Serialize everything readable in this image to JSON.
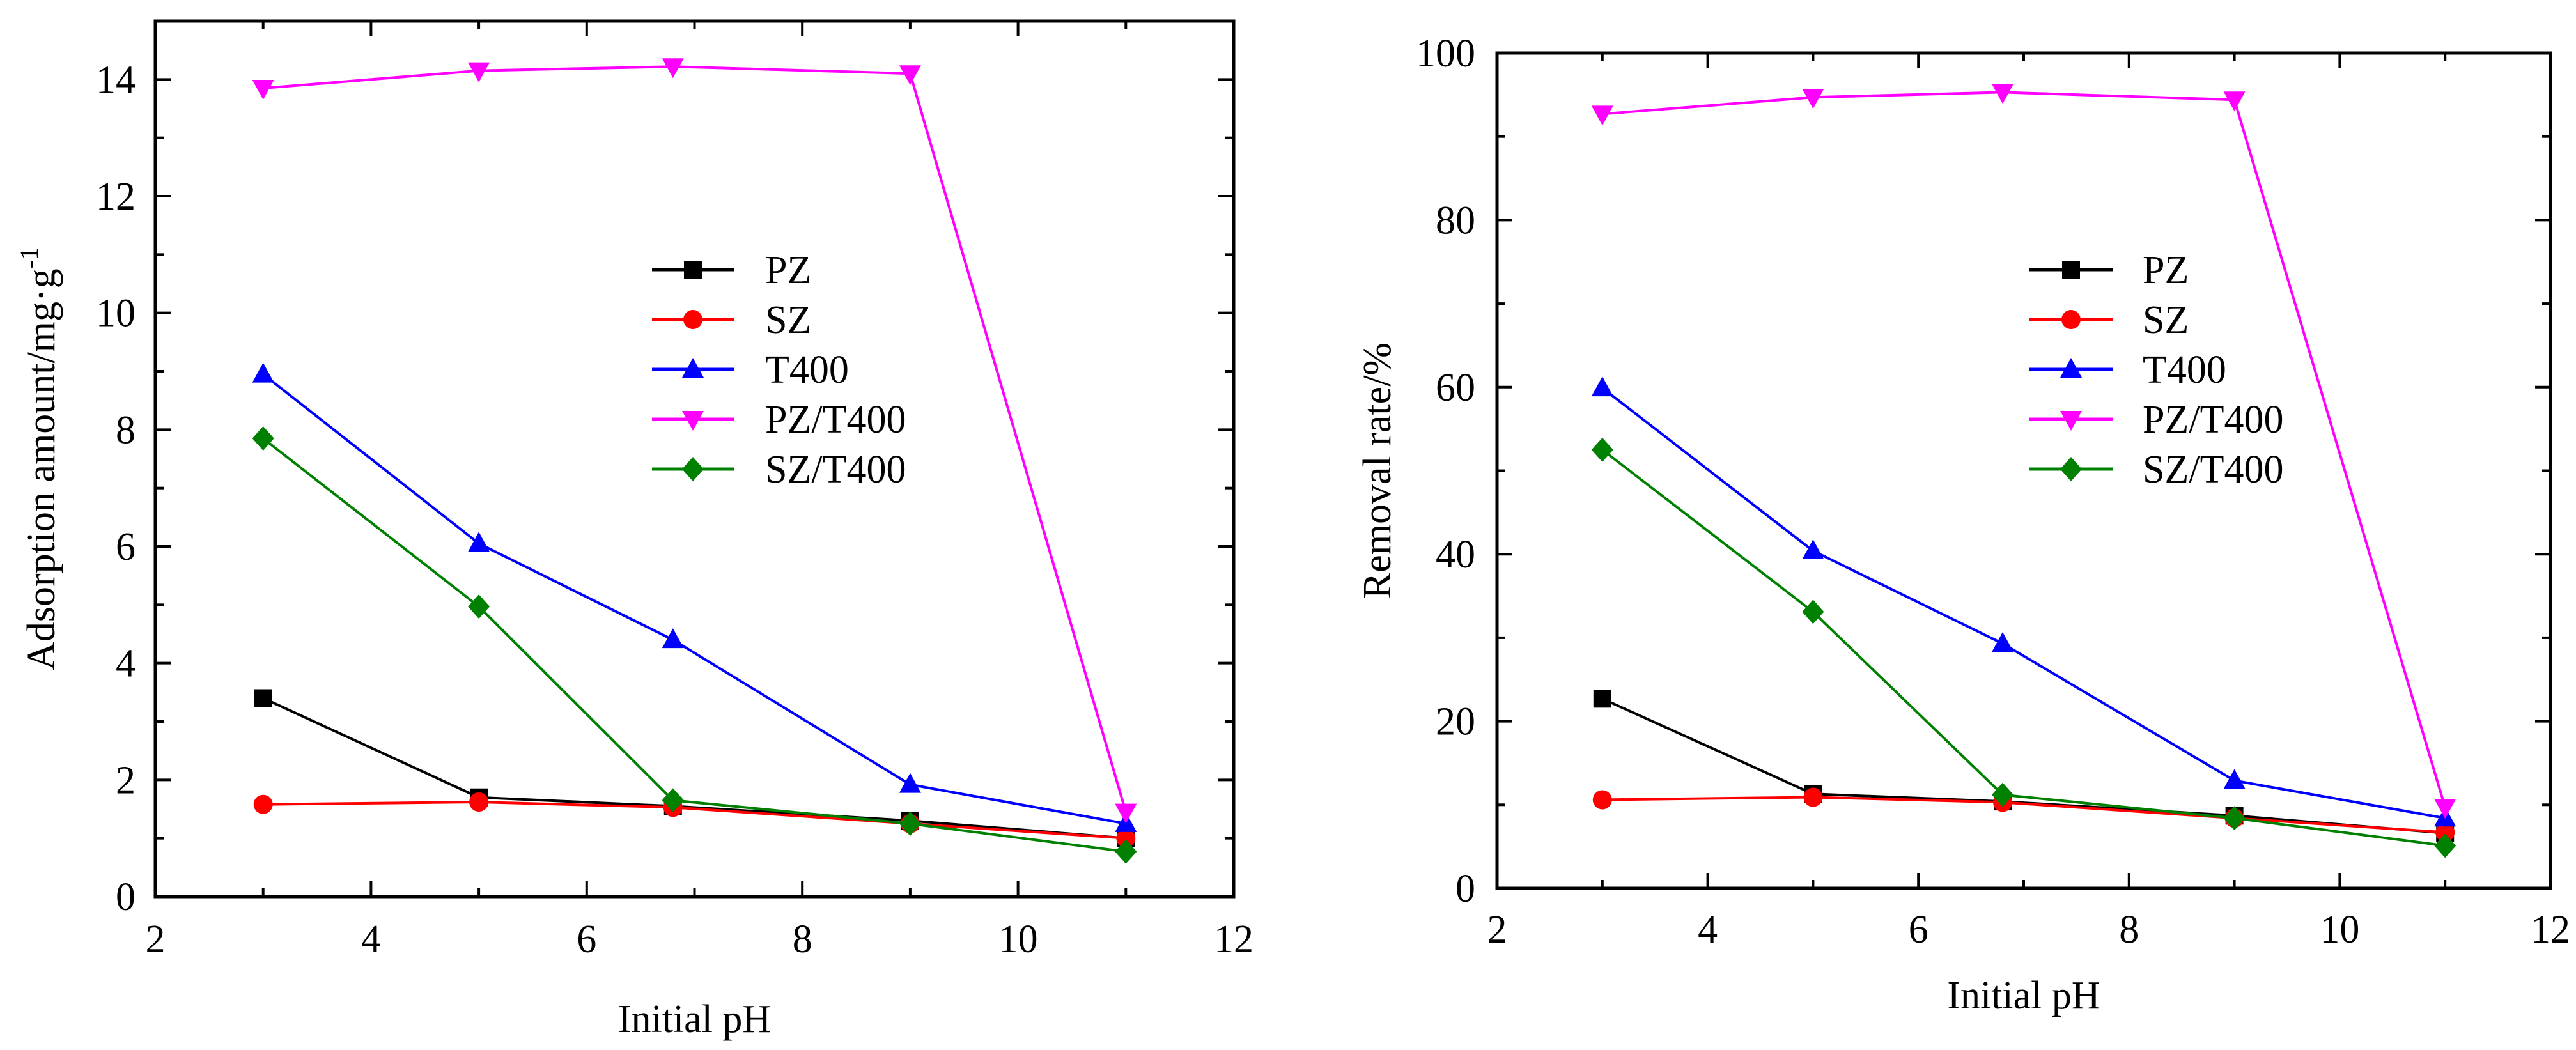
{
  "chart_data": [
    {
      "type": "line",
      "xlabel": "Initial pH",
      "ylabel": "Adsorption amount/mg·g",
      "ylabel_superscript": "-1",
      "xlim": [
        2,
        12
      ],
      "ylim": [
        0,
        15
      ],
      "x_ticks": [
        2,
        4,
        6,
        8,
        10,
        12
      ],
      "y_ticks": [
        0,
        2,
        4,
        6,
        8,
        10,
        12,
        14
      ],
      "x": [
        3,
        5,
        6.8,
        9,
        11
      ],
      "legend_position": "center-right",
      "series": [
        {
          "name": "PZ",
          "color": "#000000",
          "marker": "square",
          "values": [
            3.4,
            1.7,
            1.55,
            1.3,
            1.0
          ]
        },
        {
          "name": "SZ",
          "color": "#ff0000",
          "marker": "circle",
          "values": [
            1.58,
            1.62,
            1.53,
            1.25,
            1.0
          ]
        },
        {
          "name": "T400",
          "color": "#0000ff",
          "marker": "triangle-up",
          "values": [
            8.95,
            6.05,
            4.4,
            1.92,
            1.25
          ]
        },
        {
          "name": "PZ/T400",
          "color": "#ff00ff",
          "marker": "triangle-down",
          "values": [
            13.85,
            14.15,
            14.22,
            14.1,
            1.45
          ]
        },
        {
          "name": "SZ/T400",
          "color": "#008000",
          "marker": "diamond",
          "values": [
            7.85,
            4.97,
            1.65,
            1.25,
            0.77
          ]
        }
      ]
    },
    {
      "type": "line",
      "xlabel": "Initial pH",
      "ylabel": "Removal rate/%",
      "ylabel_superscript": "",
      "xlim": [
        2,
        12
      ],
      "ylim": [
        0,
        100
      ],
      "x_ticks": [
        2,
        4,
        6,
        8,
        10,
        12
      ],
      "y_ticks": [
        0,
        20,
        40,
        60,
        80,
        100
      ],
      "x": [
        3,
        5,
        6.8,
        9,
        11
      ],
      "legend_position": "center-right",
      "series": [
        {
          "name": "PZ",
          "color": "#000000",
          "marker": "square",
          "values": [
            22.7,
            11.3,
            10.4,
            8.7,
            6.6
          ]
        },
        {
          "name": "SZ",
          "color": "#ff0000",
          "marker": "circle",
          "values": [
            10.6,
            10.9,
            10.3,
            8.4,
            6.7
          ]
        },
        {
          "name": "T400",
          "color": "#0000ff",
          "marker": "triangle-up",
          "values": [
            59.9,
            40.4,
            29.3,
            12.9,
            8.4
          ]
        },
        {
          "name": "PZ/T400",
          "color": "#ff00ff",
          "marker": "triangle-down",
          "values": [
            92.7,
            94.7,
            95.3,
            94.4,
            9.7
          ]
        },
        {
          "name": "SZ/T400",
          "color": "#008000",
          "marker": "diamond",
          "values": [
            52.5,
            33.1,
            11.2,
            8.4,
            5.1
          ]
        }
      ]
    }
  ]
}
